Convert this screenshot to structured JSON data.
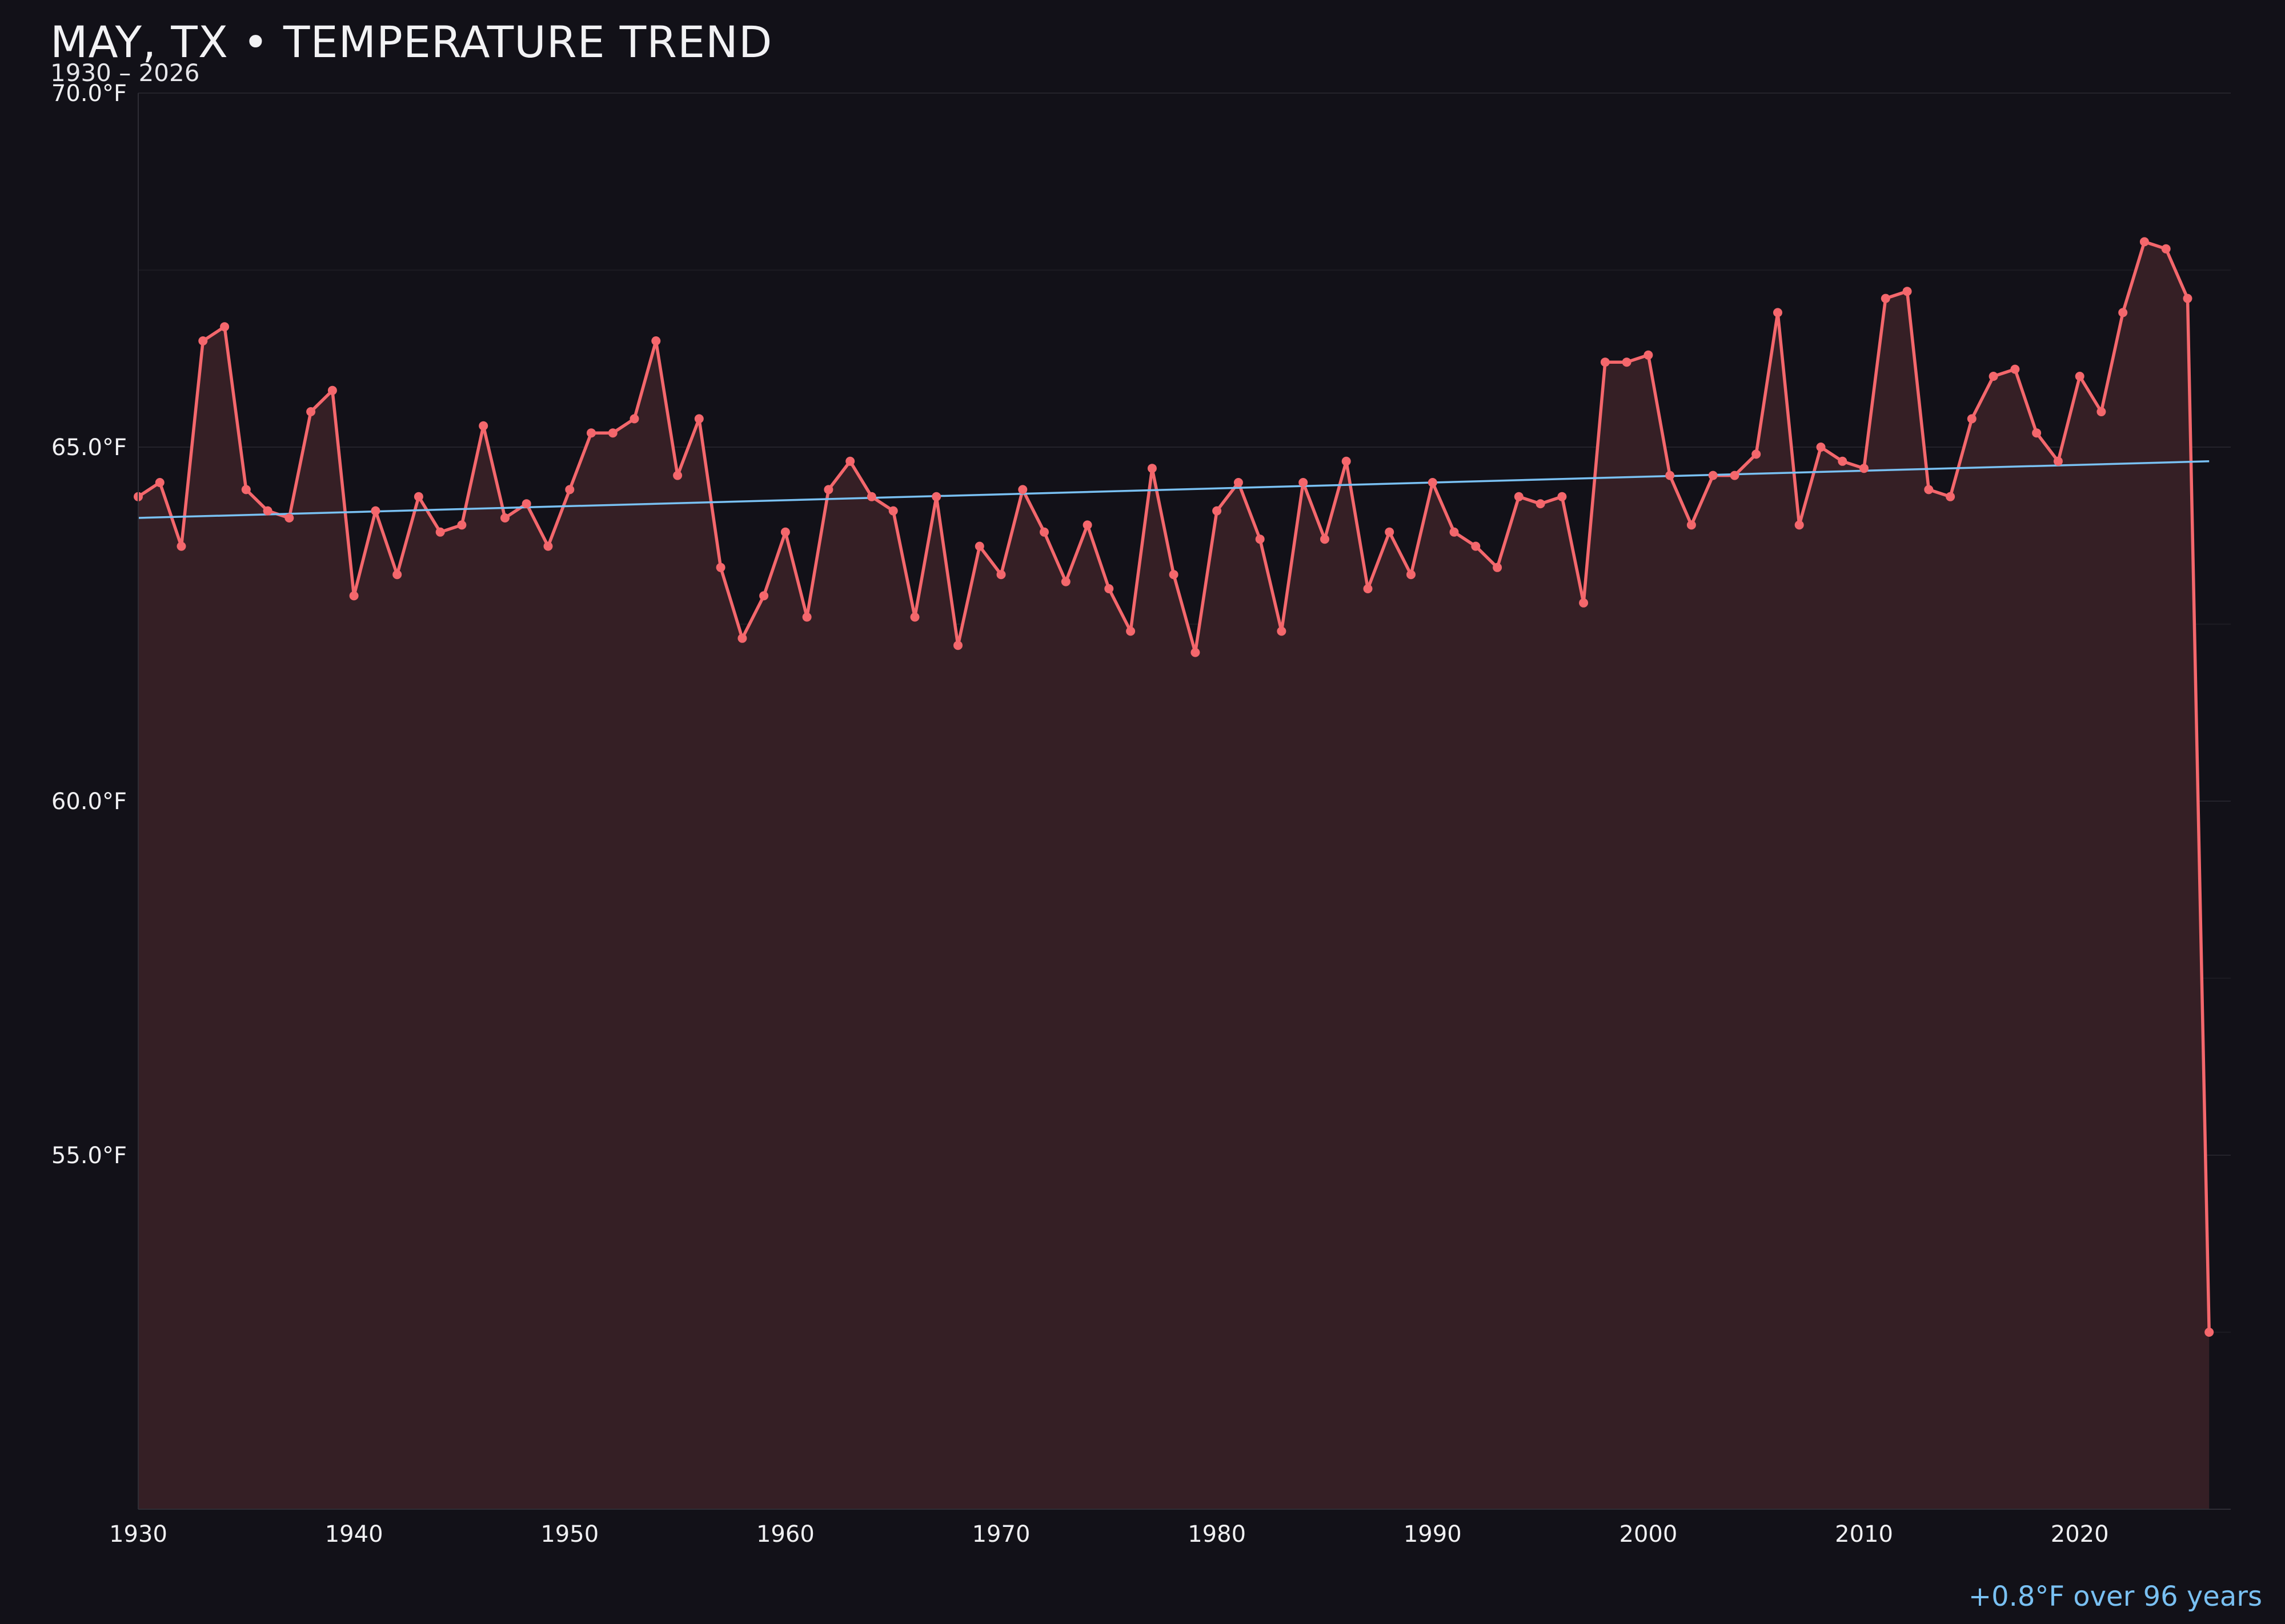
{
  "chart_data": {
    "type": "line",
    "title": "MAY, TX • TEMPERATURE TREND",
    "subtitle": "1930 – 2026",
    "xlabel": "",
    "ylabel": "",
    "x_ticks": [
      "1930",
      "1940",
      "1950",
      "1960",
      "1970",
      "1980",
      "1990",
      "2000",
      "2010",
      "2020"
    ],
    "y_ticks": [
      "55.0°F",
      "60.0°F",
      "65.0°F",
      "70.0°F"
    ],
    "xlim": [
      1930,
      2027
    ],
    "ylim": [
      50.0,
      70.0
    ],
    "grid": true,
    "series": [
      {
        "color": "#f4676c",
        "fill_color": "#351f25",
        "x": [
          1930,
          1931,
          1932,
          1933,
          1934,
          1935,
          1936,
          1937,
          1938,
          1939,
          1940,
          1941,
          1942,
          1943,
          1944,
          1945,
          1946,
          1947,
          1948,
          1949,
          1950,
          1951,
          1952,
          1953,
          1954,
          1955,
          1956,
          1957,
          1958,
          1959,
          1960,
          1961,
          1962,
          1963,
          1964,
          1965,
          1966,
          1967,
          1968,
          1969,
          1970,
          1971,
          1972,
          1973,
          1974,
          1975,
          1976,
          1977,
          1978,
          1979,
          1980,
          1981,
          1982,
          1983,
          1984,
          1985,
          1986,
          1987,
          1988,
          1989,
          1990,
          1991,
          1992,
          1993,
          1994,
          1995,
          1996,
          1997,
          1998,
          1999,
          2000,
          2001,
          2002,
          2003,
          2004,
          2005,
          2006,
          2007,
          2008,
          2009,
          2010,
          2011,
          2012,
          2013,
          2014,
          2015,
          2016,
          2017,
          2018,
          2019,
          2020,
          2021,
          2022,
          2023,
          2024,
          2025,
          2026
        ],
        "values": [
          64.3,
          64.5,
          63.6,
          66.5,
          66.7,
          64.4,
          64.1,
          64.0,
          65.5,
          65.8,
          62.9,
          64.1,
          63.2,
          64.3,
          63.8,
          63.9,
          65.3,
          64.0,
          64.2,
          63.6,
          64.4,
          65.2,
          65.2,
          65.4,
          66.5,
          64.6,
          65.4,
          63.3,
          62.3,
          62.9,
          63.8,
          62.6,
          64.4,
          64.8,
          64.3,
          64.1,
          62.6,
          64.3,
          62.2,
          63.6,
          63.2,
          64.4,
          63.8,
          63.1,
          63.9,
          63.0,
          62.4,
          64.7,
          63.2,
          62.1,
          64.1,
          64.5,
          63.7,
          62.4,
          64.5,
          63.7,
          64.8,
          63.0,
          63.8,
          63.2,
          64.5,
          63.8,
          63.6,
          63.3,
          64.3,
          64.2,
          64.3,
          62.8,
          66.2,
          66.2,
          66.3,
          64.6,
          63.9,
          64.6,
          64.6,
          64.9,
          66.9,
          63.9,
          65.0,
          64.8,
          64.7,
          67.1,
          67.2,
          64.4,
          64.3,
          65.4,
          66.0,
          66.1,
          65.2,
          64.8,
          66.0,
          65.5,
          66.9,
          67.9,
          67.8,
          67.1,
          52.5
        ]
      }
    ],
    "trend_line": {
      "color": "#79c0f2",
      "x": [
        1930,
        2026
      ],
      "y": [
        64.0,
        64.8
      ]
    },
    "annotation": {
      "text": "+0.8°F over 96 years",
      "color": "#79c0f2"
    }
  }
}
